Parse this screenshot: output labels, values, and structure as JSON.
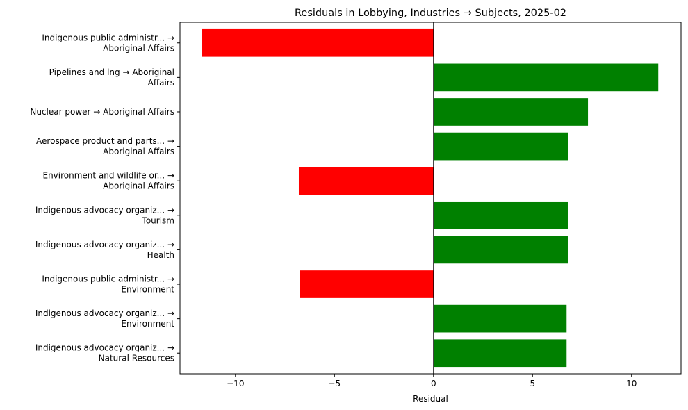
{
  "chart_data": {
    "type": "bar",
    "orientation": "horizontal",
    "title": "Residuals in Lobbying, Industries → Subjects, 2025-02",
    "xlabel": "Residual",
    "ylabel": "",
    "xlim": [
      -12.8,
      12.5
    ],
    "xticks": [
      -10,
      -5,
      0,
      5,
      10
    ],
    "xtick_labels": [
      "−10",
      "−5",
      "0",
      "5",
      "10"
    ],
    "grid": false,
    "positive_color": "#008000",
    "negative_color": "#ff0000",
    "categories": [
      [
        "Indigenous public administr... →",
        "Aboriginal Affairs"
      ],
      [
        "Pipelines and lng → Aboriginal",
        "Affairs"
      ],
      [
        "Nuclear power → Aboriginal Affairs"
      ],
      [
        "Aerospace product and parts... →",
        "Aboriginal Affairs"
      ],
      [
        "Environment and wildlife or... →",
        "Aboriginal Affairs"
      ],
      [
        "Indigenous advocacy organiz... →",
        "Tourism"
      ],
      [
        "Indigenous advocacy organiz... →",
        "Health"
      ],
      [
        "Indigenous public administr... →",
        "Environment"
      ],
      [
        "Indigenous advocacy organiz... →",
        "Environment"
      ],
      [
        "Indigenous advocacy organiz... →",
        "Natural Resources"
      ]
    ],
    "values": [
      -11.7,
      11.35,
      7.8,
      6.8,
      -6.8,
      6.78,
      6.78,
      -6.75,
      6.72,
      6.72
    ]
  }
}
